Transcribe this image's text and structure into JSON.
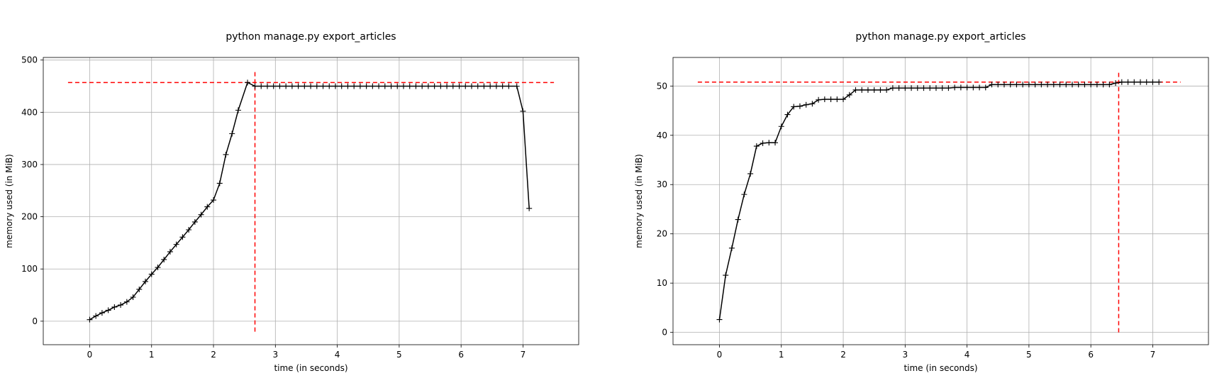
{
  "chart_data": [
    {
      "type": "line",
      "title": "python manage.py export_articles",
      "xlabel": "time (in seconds)",
      "ylabel": "memory used (in MiB)",
      "xlim": [
        -0.75,
        7.9
      ],
      "ylim": [
        -45,
        505
      ],
      "xticks": [
        0,
        1,
        2,
        3,
        4,
        5,
        6,
        7
      ],
      "yticks": [
        0,
        100,
        200,
        300,
        400,
        500
      ],
      "grid": true,
      "x": [
        0,
        0.1,
        0.2,
        0.3,
        0.4,
        0.5,
        0.6,
        0.7,
        0.8,
        0.9,
        1.0,
        1.1,
        1.2,
        1.3,
        1.4,
        1.5,
        1.6,
        1.7,
        1.8,
        1.9,
        2.0,
        2.1,
        2.2,
        2.3,
        2.4,
        2.55,
        2.67,
        2.77,
        2.87,
        2.97,
        3.07,
        3.17,
        3.27,
        3.37,
        3.47,
        3.57,
        3.67,
        3.77,
        3.87,
        3.97,
        4.07,
        4.17,
        4.27,
        4.37,
        4.47,
        4.57,
        4.67,
        4.77,
        4.87,
        4.97,
        5.07,
        5.17,
        5.27,
        5.37,
        5.47,
        5.57,
        5.67,
        5.77,
        5.87,
        5.97,
        6.07,
        6.17,
        6.27,
        6.37,
        6.47,
        6.57,
        6.67,
        6.77,
        6.9,
        7.0,
        7.1
      ],
      "y": [
        3,
        10,
        16,
        21,
        27,
        31,
        37,
        46,
        61,
        76,
        90,
        103,
        118,
        133,
        147,
        161,
        175,
        190,
        204,
        219,
        232,
        264,
        319,
        359,
        404,
        457,
        450,
        450,
        450,
        450,
        450,
        450,
        450,
        450,
        450,
        450,
        450,
        450,
        450,
        450,
        450,
        450,
        450,
        450,
        450,
        450,
        450,
        450,
        450,
        450,
        450,
        450,
        450,
        450,
        450,
        450,
        450,
        450,
        450,
        450,
        450,
        450,
        450,
        450,
        450,
        450,
        450,
        450,
        450,
        402,
        216
      ],
      "peak": {
        "x": 2.67,
        "y": 457,
        "hline_x": [
          -0.35,
          7.5
        ],
        "vline_y": [
          -20,
          480
        ]
      }
    },
    {
      "type": "line",
      "title": "python manage.py export_articles",
      "xlabel": "time (in seconds)",
      "ylabel": "memory used (in MiB)",
      "xlim": [
        -0.75,
        7.9
      ],
      "ylim": [
        -2.5,
        55.8
      ],
      "xticks": [
        0,
        1,
        2,
        3,
        4,
        5,
        6,
        7
      ],
      "yticks": [
        0,
        10,
        20,
        30,
        40,
        50
      ],
      "grid": true,
      "x": [
        0,
        0.1,
        0.2,
        0.3,
        0.4,
        0.5,
        0.6,
        0.7,
        0.8,
        0.9,
        1.0,
        1.1,
        1.2,
        1.3,
        1.4,
        1.5,
        1.6,
        1.7,
        1.8,
        1.9,
        2.0,
        2.1,
        2.2,
        2.3,
        2.4,
        2.5,
        2.6,
        2.7,
        2.8,
        2.9,
        3.0,
        3.1,
        3.2,
        3.3,
        3.4,
        3.5,
        3.6,
        3.7,
        3.8,
        3.9,
        4.0,
        4.1,
        4.2,
        4.3,
        4.4,
        4.5,
        4.6,
        4.7,
        4.8,
        4.9,
        5.0,
        5.1,
        5.2,
        5.3,
        5.4,
        5.5,
        5.6,
        5.7,
        5.8,
        5.9,
        6.0,
        6.1,
        6.2,
        6.3,
        6.4,
        6.5,
        6.6,
        6.7,
        6.8,
        6.9,
        7.0,
        7.1
      ],
      "y": [
        2.6,
        11.6,
        17.1,
        22.9,
        28.0,
        32.2,
        37.8,
        38.4,
        38.5,
        38.5,
        41.8,
        44.2,
        45.8,
        45.9,
        46.2,
        46.4,
        47.2,
        47.3,
        47.3,
        47.3,
        47.3,
        48.2,
        49.2,
        49.2,
        49.2,
        49.2,
        49.2,
        49.2,
        49.6,
        49.6,
        49.6,
        49.6,
        49.6,
        49.6,
        49.6,
        49.6,
        49.6,
        49.6,
        49.7,
        49.7,
        49.7,
        49.7,
        49.7,
        49.7,
        50.3,
        50.3,
        50.3,
        50.3,
        50.3,
        50.3,
        50.3,
        50.3,
        50.3,
        50.3,
        50.3,
        50.3,
        50.3,
        50.3,
        50.3,
        50.3,
        50.3,
        50.3,
        50.3,
        50.3,
        50.6,
        50.8,
        50.8,
        50.8,
        50.8,
        50.8,
        50.8,
        50.8
      ],
      "peak": {
        "x": 6.45,
        "y": 50.8,
        "hline_x": [
          -0.35,
          7.45
        ],
        "vline_y": [
          0,
          53
        ]
      }
    }
  ]
}
